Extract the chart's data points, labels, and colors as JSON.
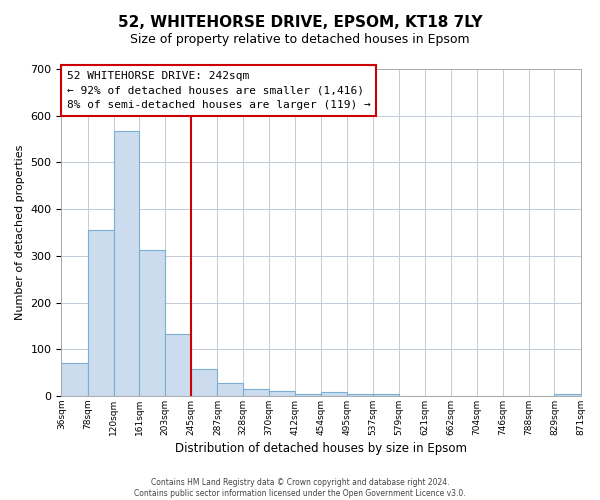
{
  "title": "52, WHITEHORSE DRIVE, EPSOM, KT18 7LY",
  "subtitle": "Size of property relative to detached houses in Epsom",
  "xlabel": "Distribution of detached houses by size in Epsom",
  "ylabel": "Number of detached properties",
  "bin_edges": [
    36,
    78,
    120,
    161,
    203,
    245,
    287,
    328,
    370,
    412,
    454,
    495,
    537,
    579,
    621,
    662,
    704,
    746,
    788,
    829,
    871
  ],
  "bin_heights": [
    70,
    355,
    567,
    313,
    133,
    58,
    28,
    15,
    10,
    5,
    8,
    5,
    4,
    0,
    0,
    0,
    0,
    0,
    0,
    4
  ],
  "bar_color": "#ccdcee",
  "bar_edge_color": "#7aafd4",
  "property_line_x": 245,
  "property_line_color": "#cc0000",
  "annotation_line1": "52 WHITEHORSE DRIVE: 242sqm",
  "annotation_line2": "← 92% of detached houses are smaller (1,416)",
  "annotation_line3": "8% of semi-detached houses are larger (119) →",
  "annotation_box_color": "#cc0000",
  "ylim": [
    0,
    700
  ],
  "yticks": [
    0,
    100,
    200,
    300,
    400,
    500,
    600,
    700
  ],
  "tick_labels": [
    "36sqm",
    "78sqm",
    "120sqm",
    "161sqm",
    "203sqm",
    "245sqm",
    "287sqm",
    "328sqm",
    "370sqm",
    "412sqm",
    "454sqm",
    "495sqm",
    "537sqm",
    "579sqm",
    "621sqm",
    "662sqm",
    "704sqm",
    "746sqm",
    "788sqm",
    "829sqm",
    "871sqm"
  ],
  "footer1": "Contains HM Land Registry data © Crown copyright and database right 2024.",
  "footer2": "Contains public sector information licensed under the Open Government Licence v3.0.",
  "background_color": "#ffffff",
  "grid_color": "#c0ccd8"
}
